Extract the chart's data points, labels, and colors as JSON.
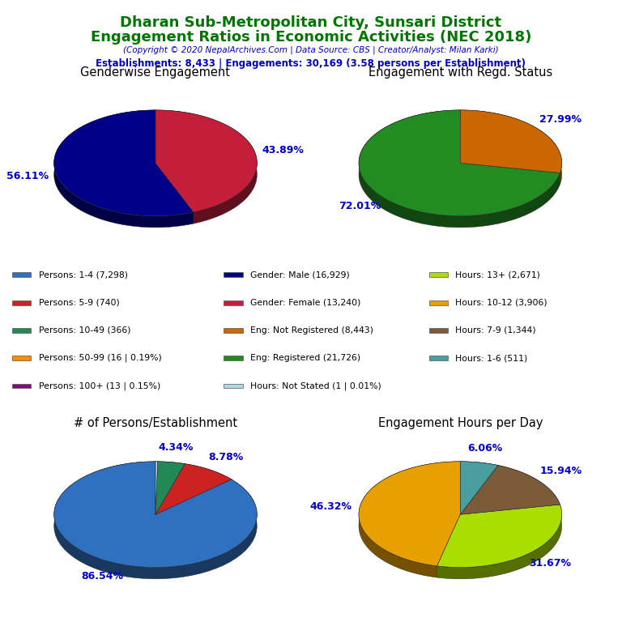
{
  "title_line1": "Dharan Sub-Metropolitan City, Sunsari District",
  "title_line2": "Engagement Ratios in Economic Activities (NEC 2018)",
  "subtitle": "(Copyright © 2020 NepalArchives.Com | Data Source: CBS | Creator/Analyst: Milan Karki)",
  "stats_line": "Establishments: 8,433 | Engagements: 30,169 (3.58 persons per Establishment)",
  "title_color": "#007700",
  "subtitle_color": "#0000CC",
  "stats_color": "#0000CC",
  "pie1_title": "Genderwise Engagement",
  "pie1_values": [
    56.11,
    43.89
  ],
  "pie1_colors": [
    "#00008B",
    "#C41E3A"
  ],
  "pie1_labels": [
    "56.11%",
    "43.89%"
  ],
  "pie1_startangle": 90,
  "pie2_title": "Engagement with Regd. Status",
  "pie2_values": [
    72.01,
    27.99
  ],
  "pie2_colors": [
    "#228B22",
    "#CC6600"
  ],
  "pie2_labels": [
    "72.01%",
    "27.99%"
  ],
  "pie2_startangle": 90,
  "pie3_title": "# of Persons/Establishment",
  "pie3_values": [
    86.54,
    8.78,
    4.34,
    0.34
  ],
  "pie3_colors": [
    "#3070C0",
    "#CC2222",
    "#228855",
    "#ADD8E6"
  ],
  "pie3_labels": [
    "86.54%",
    "8.78%",
    "4.34%",
    ""
  ],
  "pie3_startangle": 90,
  "pie4_title": "Engagement Hours per Day",
  "pie4_values": [
    46.32,
    31.67,
    15.94,
    6.06
  ],
  "pie4_colors": [
    "#E8A000",
    "#AADD00",
    "#7B5B3A",
    "#4B9EA0"
  ],
  "pie4_labels": [
    "46.32%",
    "31.67%",
    "15.94%",
    "6.06%"
  ],
  "pie4_startangle": 90,
  "legend_items": [
    {
      "label": "Persons: 1-4 (7,298)",
      "color": "#3070C0"
    },
    {
      "label": "Persons: 5-9 (740)",
      "color": "#CC2222"
    },
    {
      "label": "Persons: 10-49 (366)",
      "color": "#228855"
    },
    {
      "label": "Persons: 50-99 (16 | 0.19%)",
      "color": "#FF8C00"
    },
    {
      "label": "Persons: 100+ (13 | 0.15%)",
      "color": "#8B008B"
    },
    {
      "label": "Gender: Male (16,929)",
      "color": "#00008B"
    },
    {
      "label": "Gender: Female (13,240)",
      "color": "#C41E3A"
    },
    {
      "label": "Eng: Not Registered (8,443)",
      "color": "#CC6600"
    },
    {
      "label": "Eng: Registered (21,726)",
      "color": "#228B22"
    },
    {
      "label": "Hours: Not Stated (1 | 0.01%)",
      "color": "#ADD8E6"
    },
    {
      "label": "Hours: 13+ (2,671)",
      "color": "#AADD00"
    },
    {
      "label": "Hours: 10-12 (3,906)",
      "color": "#E8A000"
    },
    {
      "label": "Hours: 7-9 (1,344)",
      "color": "#7B5B3A"
    },
    {
      "label": "Hours: 1-6 (511)",
      "color": "#4B9EA0"
    }
  ],
  "label_color": "#0000CC"
}
